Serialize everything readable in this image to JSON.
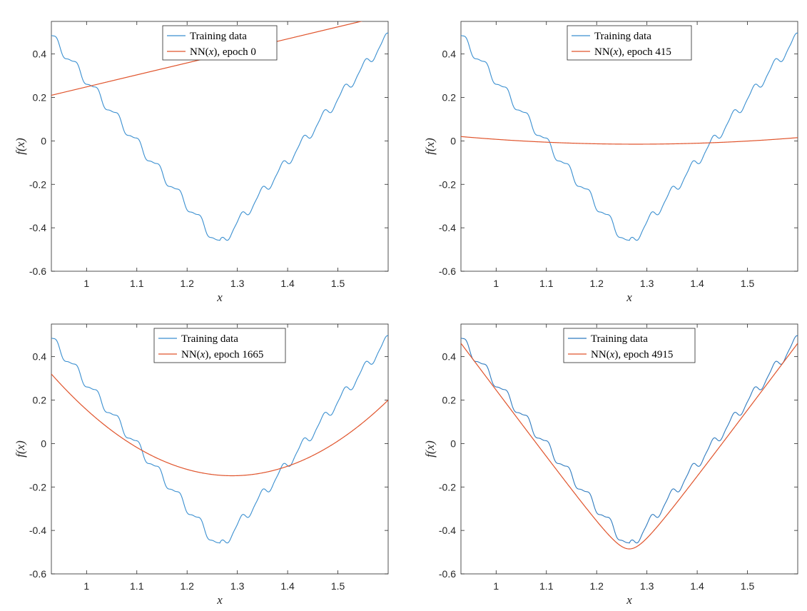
{
  "figure": {
    "panels": [
      {
        "legend_blue": "Training data",
        "legend_red_prefix": "NN(",
        "legend_red_var": "x",
        "legend_red_suffix": "), epoch 0"
      },
      {
        "legend_blue": "Training data",
        "legend_red_prefix": "NN(",
        "legend_red_var": "x",
        "legend_red_suffix": "), epoch 415"
      },
      {
        "legend_blue": "Training data",
        "legend_red_prefix": "NN(",
        "legend_red_var": "x",
        "legend_red_suffix": "), epoch 1665"
      },
      {
        "legend_blue": "Training data",
        "legend_red_prefix": "NN(",
        "legend_red_var": "x",
        "legend_red_suffix": "), epoch 4915"
      }
    ]
  },
  "chart_data": [
    {
      "type": "line",
      "title": "",
      "xlabel": "x",
      "ylabel": "f(x)",
      "xlim": [
        0.93,
        1.6
      ],
      "ylim": [
        -0.6,
        0.55
      ],
      "xticks": [
        "1",
        "1.1",
        "1.2",
        "1.3",
        "1.4",
        "1.5"
      ],
      "yticks": [
        "-0.6",
        "-0.4",
        "-0.2",
        "0",
        "0.2",
        "0.4"
      ],
      "legend_position": "top-center",
      "series": [
        {
          "name": "Training data",
          "color": "#3a8fd0",
          "kind": "training_data",
          "x": [
            0.93,
            1.265,
            1.6
          ],
          "y": [
            0.48,
            -0.48,
            0.48
          ]
        },
        {
          "name": "NN(x), epoch 0",
          "color": "#e0542c",
          "kind": "network",
          "x": [
            0.93,
            1.6
          ],
          "y": [
            0.21,
            0.58
          ]
        }
      ]
    },
    {
      "type": "line",
      "title": "",
      "xlabel": "x",
      "ylabel": "f(x)",
      "xlim": [
        0.93,
        1.6
      ],
      "ylim": [
        -0.6,
        0.55
      ],
      "xticks": [
        "1",
        "1.1",
        "1.2",
        "1.3",
        "1.4",
        "1.5"
      ],
      "yticks": [
        "-0.6",
        "-0.4",
        "-0.2",
        "0",
        "0.2",
        "0.4"
      ],
      "legend_position": "top-center",
      "series": [
        {
          "name": "Training data",
          "color": "#3a8fd0",
          "kind": "training_data",
          "x": [
            0.93,
            1.265,
            1.6
          ],
          "y": [
            0.48,
            -0.48,
            0.48
          ]
        },
        {
          "name": "NN(x), epoch 415",
          "color": "#e0542c",
          "kind": "network",
          "x": [
            0.93,
            1.26,
            1.6
          ],
          "y": [
            0.02,
            -0.015,
            0.015
          ]
        }
      ]
    },
    {
      "type": "line",
      "title": "",
      "xlabel": "x",
      "ylabel": "f(x)",
      "xlim": [
        0.93,
        1.6
      ],
      "ylim": [
        -0.6,
        0.55
      ],
      "xticks": [
        "1",
        "1.1",
        "1.2",
        "1.3",
        "1.4",
        "1.5"
      ],
      "yticks": [
        "-0.6",
        "-0.4",
        "-0.2",
        "0",
        "0.2",
        "0.4"
      ],
      "legend_position": "top-center",
      "series": [
        {
          "name": "Training data",
          "color": "#3a8fd0",
          "kind": "training_data",
          "x": [
            0.93,
            1.265,
            1.6
          ],
          "y": [
            0.48,
            -0.48,
            0.48
          ]
        },
        {
          "name": "NN(x), epoch 1665",
          "color": "#e0542c",
          "kind": "network",
          "x": [
            0.93,
            1.26,
            1.6
          ],
          "y": [
            0.32,
            -0.145,
            0.2
          ]
        }
      ]
    },
    {
      "type": "line",
      "title": "",
      "xlabel": "x",
      "ylabel": "f(x)",
      "xlim": [
        0.93,
        1.6
      ],
      "ylim": [
        -0.6,
        0.55
      ],
      "xticks": [
        "1",
        "1.1",
        "1.2",
        "1.3",
        "1.4",
        "1.5"
      ],
      "yticks": [
        "-0.6",
        "-0.4",
        "-0.2",
        "0",
        "0.2",
        "0.4"
      ],
      "legend_position": "top-center",
      "series": [
        {
          "name": "Training data",
          "color": "#2f7bbf",
          "kind": "training_data",
          "x": [
            0.93,
            1.265,
            1.6
          ],
          "y": [
            0.48,
            -0.48,
            0.48
          ]
        },
        {
          "name": "NN(x), epoch 4915",
          "color": "#e0542c",
          "kind": "network",
          "x": [
            0.93,
            1.265,
            1.6
          ],
          "y": [
            0.55,
            -0.485,
            0.55
          ]
        }
      ]
    }
  ]
}
